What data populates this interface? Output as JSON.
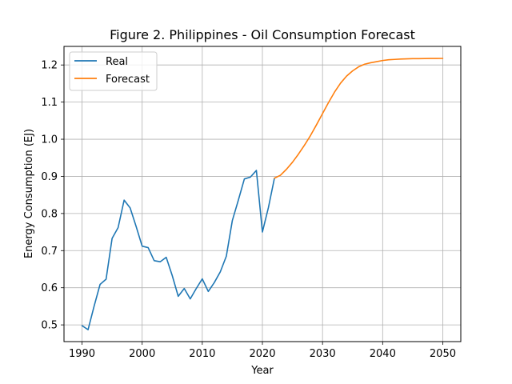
{
  "chart_data": {
    "type": "line",
    "title": "Figure 2. Philippines - Oil Consumption Forecast",
    "xlabel": "Year",
    "ylabel": "Energy Consumption (EJ)",
    "xlim": [
      1987.0,
      2053.0
    ],
    "ylim": [
      0.455,
      1.25
    ],
    "xticks": [
      1990,
      2000,
      2010,
      2020,
      2030,
      2040,
      2050
    ],
    "yticks": [
      0.5,
      0.6,
      0.7,
      0.8,
      0.9,
      1.0,
      1.1,
      1.2
    ],
    "xtick_labels": [
      "1990",
      "2000",
      "2010",
      "2020",
      "2030",
      "2040",
      "2050"
    ],
    "ytick_labels": [
      "0.5",
      "0.6",
      "0.7",
      "0.8",
      "0.9",
      "1.0",
      "1.1",
      "1.2"
    ],
    "grid": true,
    "legend_position": "upper-left",
    "series": [
      {
        "name": "Real",
        "color": "#1f77b4",
        "x": [
          1990,
          1991,
          1992,
          1993,
          1994,
          1995,
          1996,
          1997,
          1998,
          1999,
          2000,
          2001,
          2002,
          2003,
          2004,
          2005,
          2006,
          2007,
          2008,
          2009,
          2010,
          2011,
          2012,
          2013,
          2014,
          2015,
          2016,
          2017,
          2018,
          2019,
          2020,
          2021,
          2022
        ],
        "y": [
          0.498,
          0.487,
          0.55,
          0.609,
          0.623,
          0.733,
          0.762,
          0.836,
          0.815,
          0.765,
          0.712,
          0.708,
          0.673,
          0.67,
          0.682,
          0.633,
          0.577,
          0.598,
          0.57,
          0.598,
          0.624,
          0.59,
          0.614,
          0.643,
          0.685,
          0.781,
          0.836,
          0.893,
          0.898,
          0.916,
          0.75,
          0.816,
          0.895
        ]
      },
      {
        "name": "Forecast",
        "color": "#ff7f0e",
        "x": [
          2022,
          2023,
          2024,
          2025,
          2026,
          2027,
          2028,
          2029,
          2030,
          2031,
          2032,
          2033,
          2034,
          2035,
          2036,
          2037,
          2038,
          2039,
          2040,
          2041,
          2042,
          2043,
          2044,
          2045,
          2046,
          2047,
          2048,
          2049,
          2050
        ],
        "y": [
          0.895,
          0.903,
          0.919,
          0.938,
          0.96,
          0.984,
          1.01,
          1.039,
          1.069,
          1.099,
          1.127,
          1.151,
          1.17,
          1.184,
          1.195,
          1.202,
          1.206,
          1.209,
          1.212,
          1.214,
          1.215,
          1.216,
          1.2165,
          1.217,
          1.217,
          1.2173,
          1.2175,
          1.2176,
          1.2177
        ]
      }
    ]
  }
}
